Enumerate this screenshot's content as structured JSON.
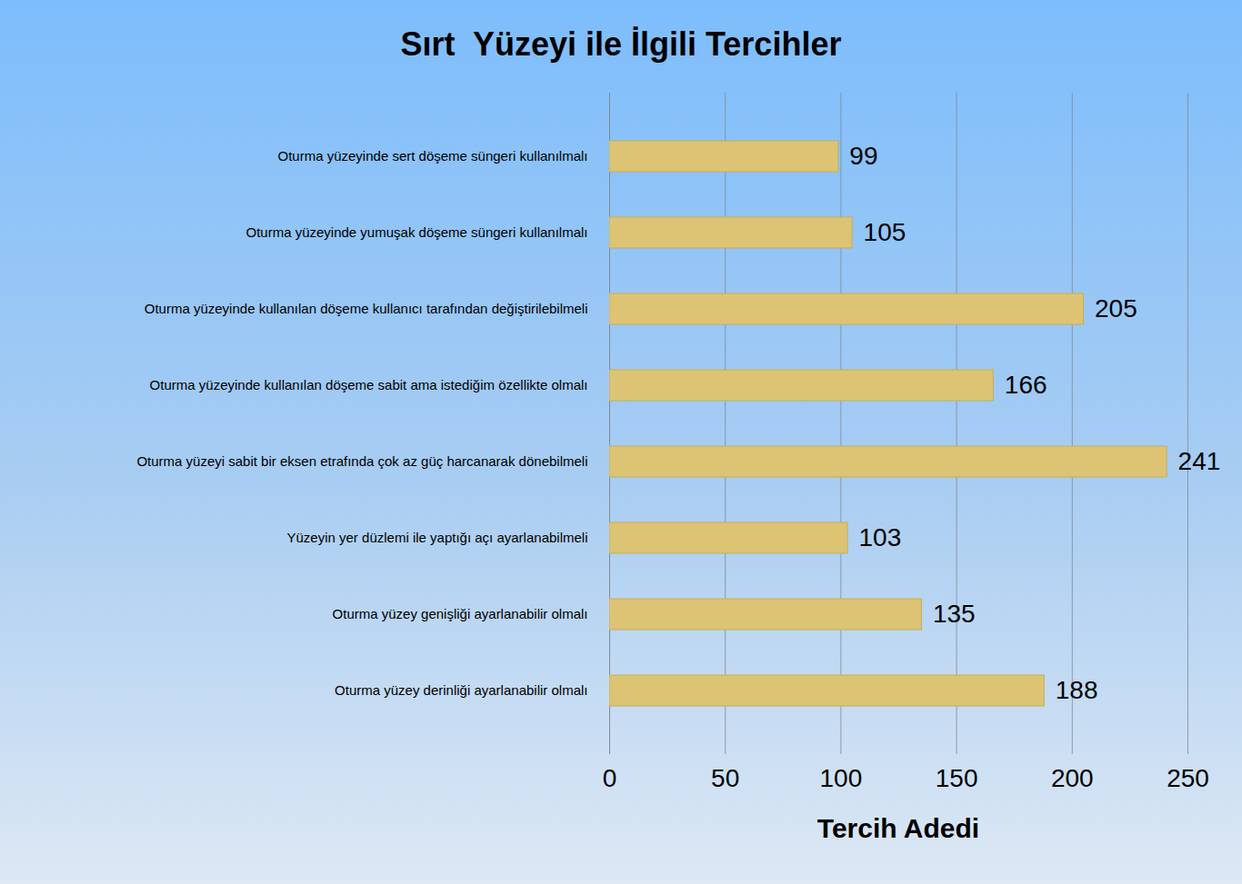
{
  "chart_data": {
    "type": "bar",
    "title": "Sırt  Yüzeyi ile İlgili Tercihler",
    "orientation": "horizontal",
    "x_label": "Tercih Adedi",
    "categories": [
      "Oturma yüzeyinde sert döşeme süngeri kullanılmalı",
      "Oturma yüzeyinde yumuşak döşeme süngeri kullanılmalı",
      "Oturma yüzeyinde kullanılan döşeme kullanıcı tarafından değiştirilebilmeli",
      "Oturma yüzeyinde kullanılan döşeme sabit ama istediğim özellikte olmalı",
      "Oturma yüzeyi sabit bir eksen etrafında çok az güç harcanarak dönebilmeli",
      "Yüzeyin yer düzlemi ile yaptığı açı ayarlanabilmeli",
      "Oturma yüzey genişliği ayarlanabilir olmalı",
      "Oturma yüzey derinliği ayarlanabilir olmalı"
    ],
    "values": [
      99,
      105,
      205,
      166,
      241,
      103,
      135,
      188
    ],
    "color": "#dcc474",
    "xlim": [
      0,
      250
    ],
    "xticks": [
      0,
      50,
      100,
      150,
      200,
      250
    ],
    "grid": true,
    "data_labels": true
  }
}
